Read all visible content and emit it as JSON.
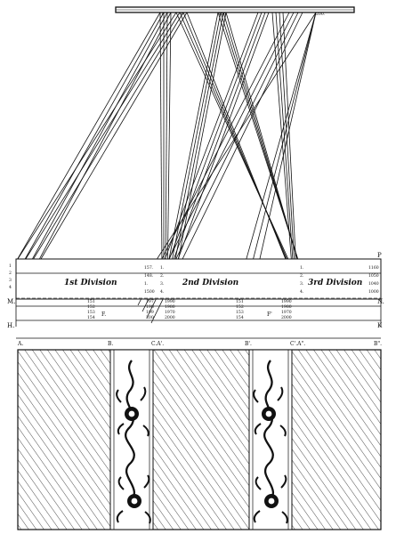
{
  "bar_labels": [
    "1",
    "4",
    "156.",
    "200."
  ],
  "divisions": [
    "1st Division",
    "2nd Division",
    "3rd Division"
  ],
  "band_letters": {
    "top_right": "P",
    "mid_left": "M.",
    "mid_right": "N.",
    "bottom_left": "H.",
    "bottom_right": "K"
  },
  "left_index_letters": [
    "1",
    "2",
    "3",
    "4"
  ],
  "first_division_numbers": [
    "157.",
    "148.",
    "1.",
    "1500"
  ],
  "second_division_numbers": [
    "1.",
    "2.",
    "3.",
    "4."
  ],
  "third_division_numbers": [
    "1.",
    "2.",
    "3.",
    "4."
  ],
  "right_numbers": [
    "1160",
    "1050",
    "1040",
    "1000"
  ],
  "first_lower_numbers": [
    "151",
    "152",
    "153",
    "154"
  ],
  "second_lower_left": [
    "197",
    "198",
    "199",
    "200"
  ],
  "second_lower_right": [
    "1990",
    "1980",
    "1970",
    "2000"
  ],
  "third_lower_numbers": [
    "151",
    "152",
    "153",
    "154"
  ],
  "third_lower_right": [
    "1990",
    "1980",
    "1970",
    "2000"
  ],
  "point_labels": {
    "F": "F.",
    "F_prime": "F'"
  },
  "ruler_labels": [
    "A.",
    "B.",
    "C.A'.",
    "B'.",
    "C'.A\".",
    "B\"."
  ],
  "colors": {
    "ink": "#111111",
    "paper": "#ffffff"
  }
}
